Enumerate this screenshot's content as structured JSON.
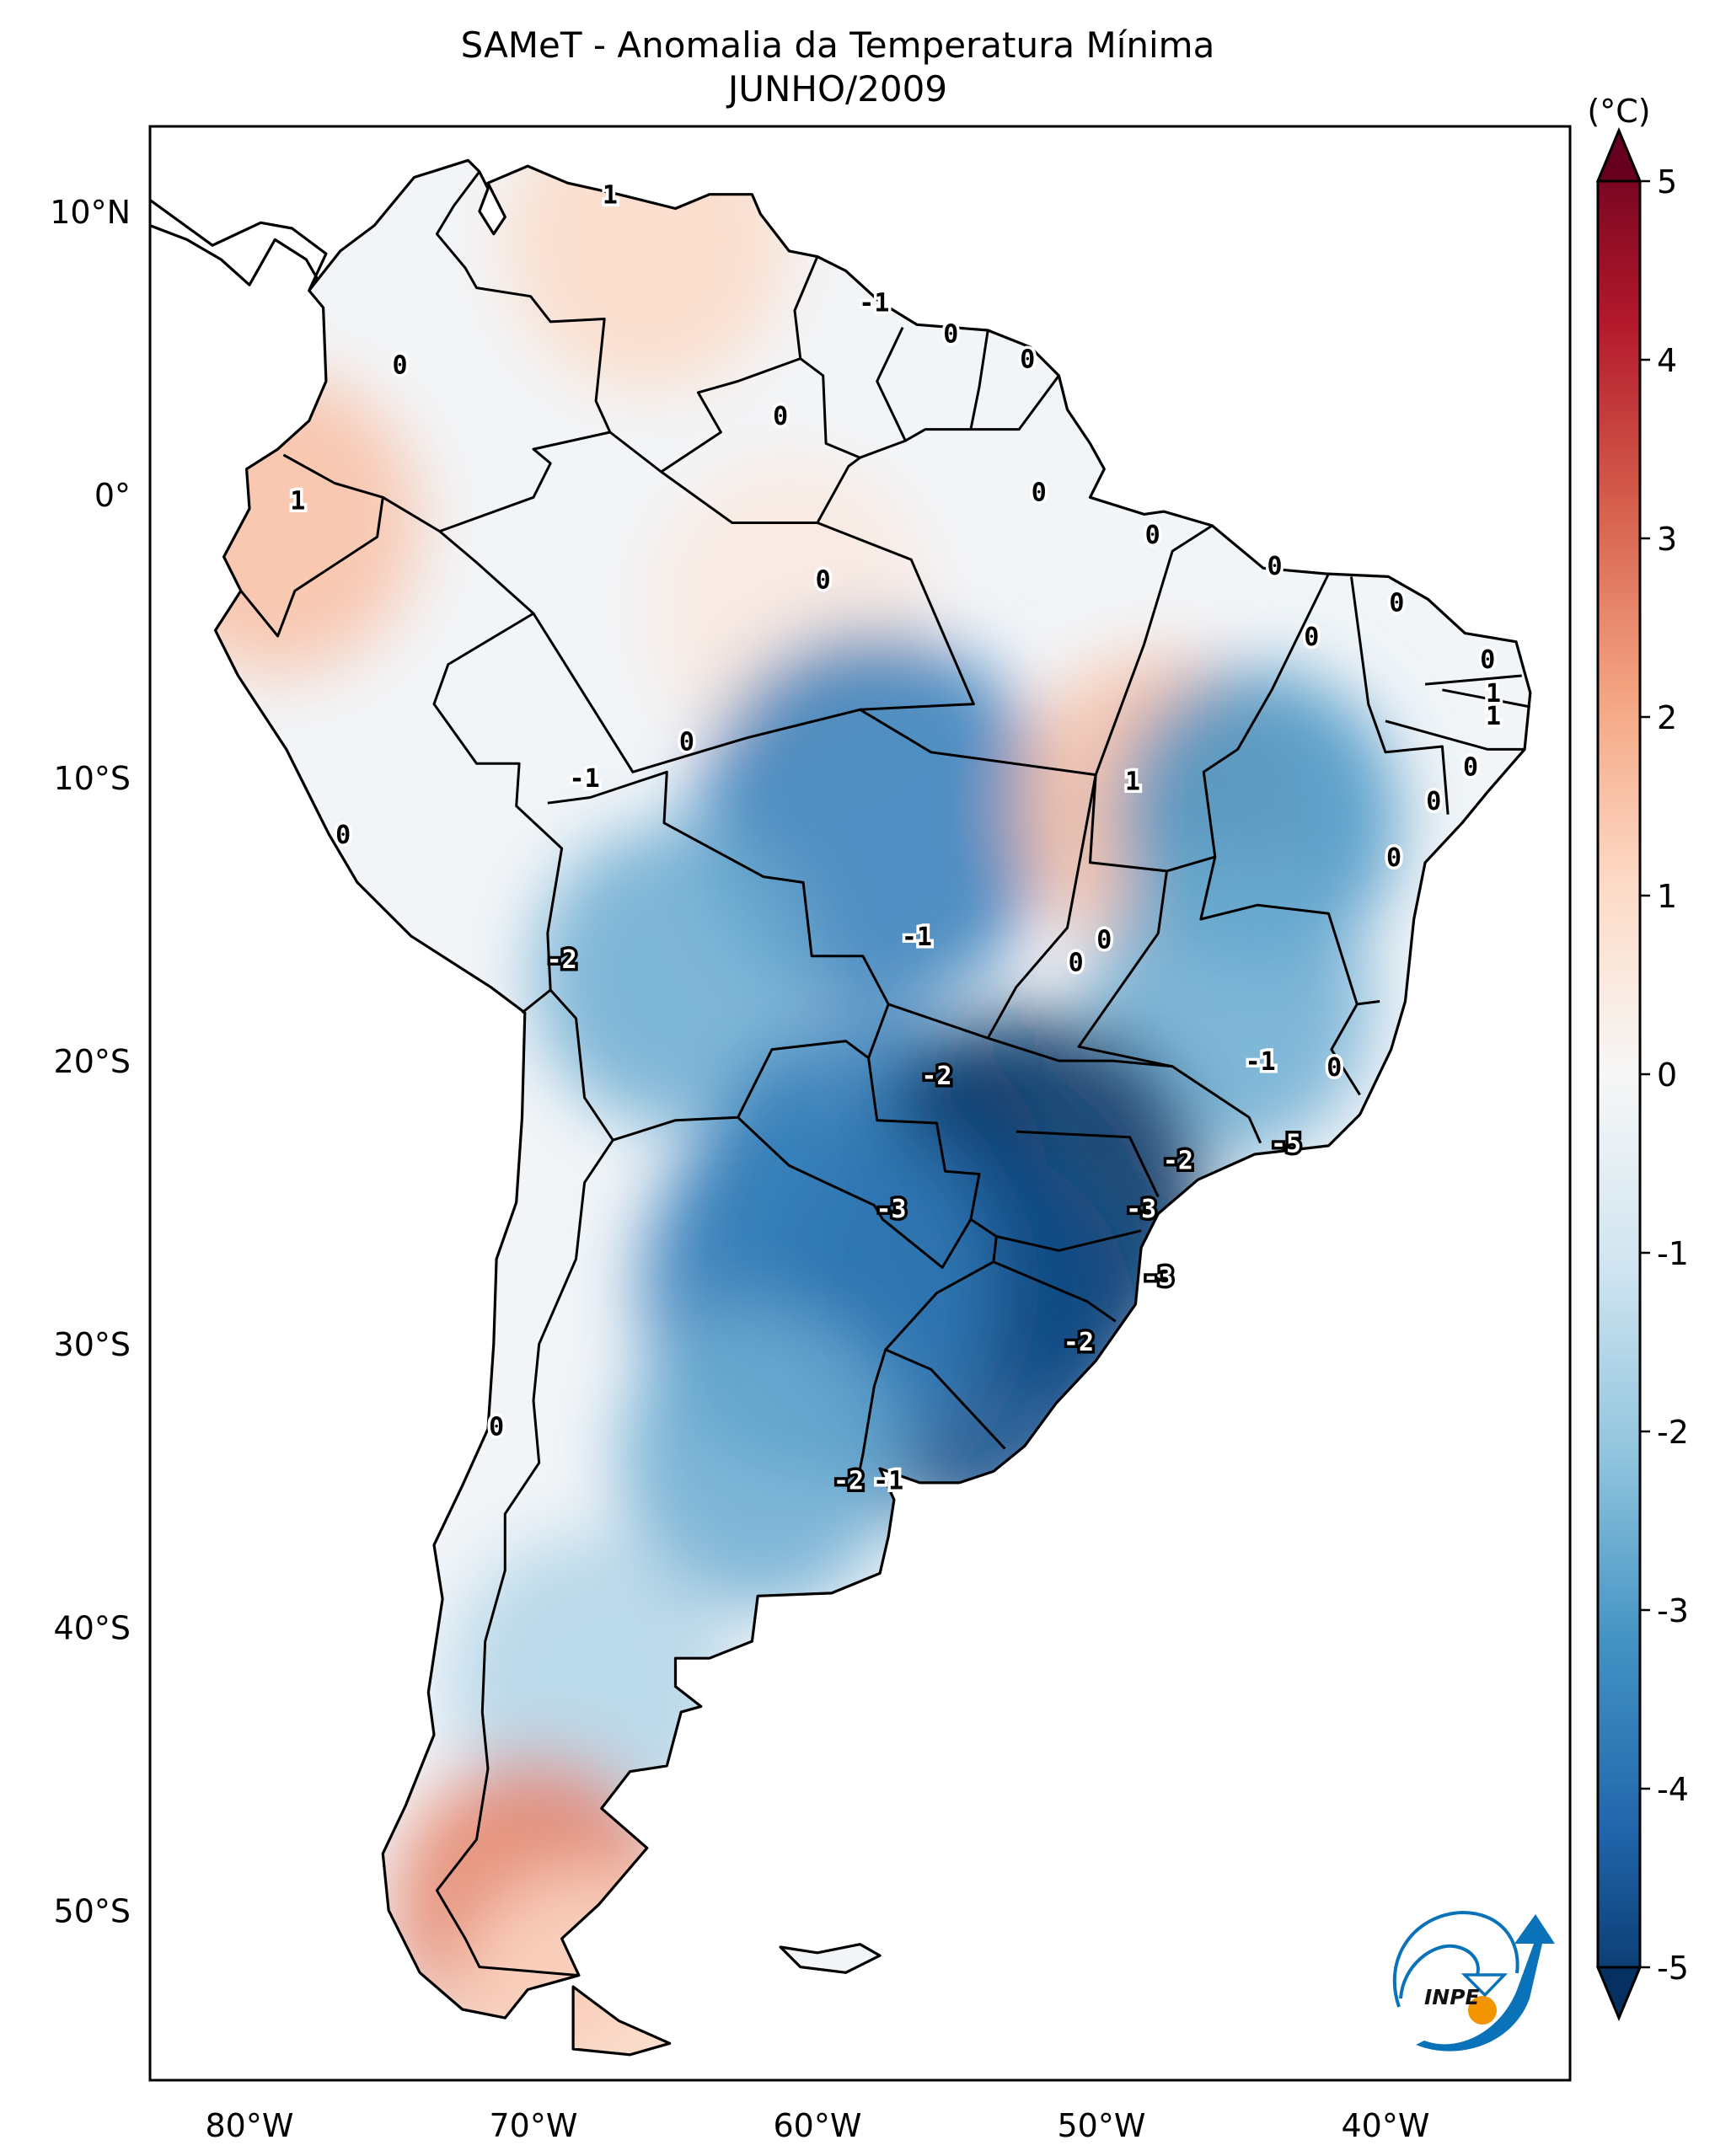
{
  "title": {
    "line1": "SAMeT - Anomalia da Temperatura Mínima",
    "line2": "JUNHO/2009"
  },
  "colorbar": {
    "unit_label": "(°C)",
    "ticks": [
      "5",
      "4",
      "3",
      "2",
      "1",
      "0",
      "-1",
      "-2",
      "-3",
      "-4",
      "-5"
    ],
    "min": -5,
    "max": 5,
    "extend": "both",
    "colormap": "RdBu_r",
    "stops": [
      "#053061",
      "#2166ac",
      "#4393c3",
      "#92c5de",
      "#d1e5f0",
      "#f7f7f7",
      "#fddbc7",
      "#f4a582",
      "#d6604d",
      "#b2182b",
      "#67001f"
    ]
  },
  "logo": {
    "text": "INPE",
    "blue": "#0a72b8",
    "orange": "#f29500"
  },
  "chart_data": {
    "type": "heatmap",
    "title": "SAMeT - Anomalia da Temperatura Mínima JUNHO/2009",
    "xlabel": "",
    "ylabel": "",
    "x_ticks": [
      {
        "value": -80,
        "label": "80°W"
      },
      {
        "value": -70,
        "label": "70°W"
      },
      {
        "value": -60,
        "label": "60°W"
      },
      {
        "value": -50,
        "label": "50°W"
      },
      {
        "value": -40,
        "label": "40°W"
      }
    ],
    "y_ticks": [
      {
        "value": 10,
        "label": "10°N"
      },
      {
        "value": 0,
        "label": "0°"
      },
      {
        "value": -10,
        "label": "10°S"
      },
      {
        "value": -20,
        "label": "20°S"
      },
      {
        "value": -30,
        "label": "30°S"
      },
      {
        "value": -40,
        "label": "40°S"
      },
      {
        "value": -50,
        "label": "50°S"
      }
    ],
    "xlim": [
      -83.5,
      -33.5
    ],
    "ylim": [
      -56,
      13
    ],
    "colorbar_range": [
      -5,
      5
    ],
    "units": "°C",
    "anomaly_regions": [
      {
        "name": "northern-venezuela",
        "lon": -66,
        "lat": 9,
        "value": 1
      },
      {
        "name": "ecuador",
        "lon": -79,
        "lat": -1,
        "value": 1.5
      },
      {
        "name": "amazon-north",
        "lon": -61,
        "lat": -4,
        "value": 0.5
      },
      {
        "name": "rondonia",
        "lon": -58,
        "lat": -11.5,
        "value": -3.5
      },
      {
        "name": "tocantins",
        "lon": -48,
        "lat": -11,
        "value": 1.5
      },
      {
        "name": "bahia-west",
        "lon": -44.5,
        "lat": -11.5,
        "value": -3
      },
      {
        "name": "bolivia-lowlands",
        "lon": -65,
        "lat": -17,
        "value": -2.5
      },
      {
        "name": "minas-gerais",
        "lon": -45.5,
        "lat": -18,
        "value": -2.5
      },
      {
        "name": "paraguay",
        "lon": -58,
        "lat": -25,
        "value": -3.5
      },
      {
        "name": "parana",
        "lon": -52.5,
        "lat": -25,
        "value": -5
      },
      {
        "name": "rio-grande-do-sul",
        "lon": -55,
        "lat": -29.5,
        "value": -4.5
      },
      {
        "name": "northern-argentina",
        "lon": -60,
        "lat": -28,
        "value": -3.5
      },
      {
        "name": "pampas",
        "lon": -62,
        "lat": -34,
        "value": -2.5
      },
      {
        "name": "patagonia-north",
        "lon": -68,
        "lat": -42,
        "value": -1.5
      },
      {
        "name": "southern-patagonia",
        "lon": -70,
        "lat": -50,
        "value": 2.5
      },
      {
        "name": "tierra-del-fuego",
        "lon": -68,
        "lat": -54,
        "value": 1
      }
    ],
    "contour_labels": [
      {
        "text": "1",
        "lon": -67.3,
        "lat": 10.6
      },
      {
        "text": "0",
        "lon": -74.7,
        "lat": 4.6
      },
      {
        "text": "-1",
        "lon": -58.0,
        "lat": 6.8
      },
      {
        "text": "0",
        "lon": -55.3,
        "lat": 5.7
      },
      {
        "text": "0",
        "lon": -52.6,
        "lat": 4.8
      },
      {
        "text": "0",
        "lon": -61.3,
        "lat": 2.8
      },
      {
        "text": "1",
        "lon": -78.3,
        "lat": -0.2
      },
      {
        "text": "0",
        "lon": -52.2,
        "lat": 0.1
      },
      {
        "text": "0",
        "lon": -59.8,
        "lat": -3.0
      },
      {
        "text": "0",
        "lon": -48.2,
        "lat": -1.4
      },
      {
        "text": "0",
        "lon": -43.9,
        "lat": -2.5
      },
      {
        "text": "0",
        "lon": -39.6,
        "lat": -3.8
      },
      {
        "text": "0",
        "lon": -42.6,
        "lat": -5.0
      },
      {
        "text": "0",
        "lon": -36.4,
        "lat": -5.8
      },
      {
        "text": "1",
        "lon": -36.2,
        "lat": -7.0
      },
      {
        "text": "1",
        "lon": -36.2,
        "lat": -7.8
      },
      {
        "text": "0",
        "lon": -37.0,
        "lat": -9.6
      },
      {
        "text": "0",
        "lon": -38.3,
        "lat": -10.8
      },
      {
        "text": "0",
        "lon": -39.7,
        "lat": -12.8
      },
      {
        "text": "0",
        "lon": -64.6,
        "lat": -8.7
      },
      {
        "text": "-1",
        "lon": -68.2,
        "lat": -10.0
      },
      {
        "text": "1",
        "lon": -48.9,
        "lat": -10.1
      },
      {
        "text": "0",
        "lon": -76.7,
        "lat": -12.0
      },
      {
        "text": "-1",
        "lon": -56.5,
        "lat": -15.6
      },
      {
        "text": "0",
        "lon": -49.9,
        "lat": -15.7
      },
      {
        "text": "0",
        "lon": -50.9,
        "lat": -16.5
      },
      {
        "text": "-2",
        "lon": -69.0,
        "lat": -16.4
      },
      {
        "text": "-2",
        "lon": -55.8,
        "lat": -20.5
      },
      {
        "text": "-1",
        "lon": -44.4,
        "lat": -20.0
      },
      {
        "text": "0",
        "lon": -41.8,
        "lat": -20.2
      },
      {
        "text": "-5",
        "lon": -43.5,
        "lat": -22.9
      },
      {
        "text": "-2",
        "lon": -47.3,
        "lat": -23.5
      },
      {
        "text": "-3",
        "lon": -57.4,
        "lat": -25.2
      },
      {
        "text": "-3",
        "lon": -48.6,
        "lat": -25.2
      },
      {
        "text": "-3",
        "lon": -48.0,
        "lat": -27.6
      },
      {
        "text": "-2",
        "lon": -50.8,
        "lat": -29.9
      },
      {
        "text": "-2",
        "lon": -58.9,
        "lat": -34.8
      },
      {
        "text": "-1",
        "lon": -57.5,
        "lat": -34.8
      },
      {
        "text": "0",
        "lon": -71.3,
        "lat": -32.9
      }
    ]
  }
}
